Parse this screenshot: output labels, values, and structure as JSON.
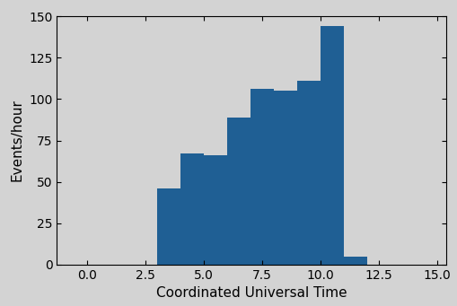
{
  "chart_data": {
    "type": "histogram",
    "x_label": "Coordinated Universal Time",
    "y_label": "Events/hour",
    "bins": [
      3,
      4,
      5,
      6,
      7,
      8,
      9,
      10,
      11,
      12
    ],
    "values": [
      46,
      67,
      66,
      89,
      106,
      105,
      111,
      144,
      5
    ],
    "color": "#1f5f94",
    "xlim": [
      -1.3,
      15.4
    ],
    "xticks": [
      {
        "value": 0,
        "label": "0.0"
      },
      {
        "value": 2.5,
        "label": "2.5"
      },
      {
        "value": 5,
        "label": "5.0"
      },
      {
        "value": 7.5,
        "label": "7.5"
      },
      {
        "value": 10,
        "label": "10.0"
      },
      {
        "value": 12.5,
        "label": "12.5"
      },
      {
        "value": 15,
        "label": "15.0"
      }
    ],
    "ylim": [
      0,
      150
    ],
    "yticks": [
      0,
      25,
      50,
      75,
      100,
      125,
      150
    ],
    "grid": false
  }
}
